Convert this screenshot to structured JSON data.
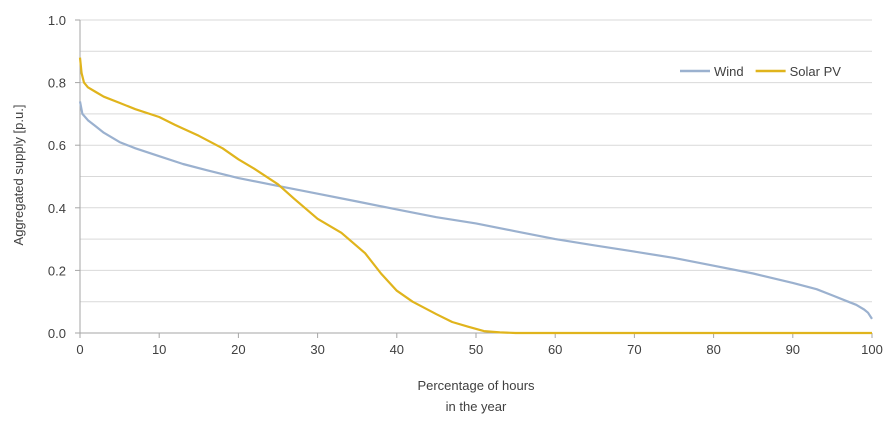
{
  "chart_data": {
    "type": "line",
    "title": "",
    "xlabel_lines": [
      "Percentage of hours",
      "in the year"
    ],
    "ylabel": "Aggregated supply [p.u.]",
    "xlim": [
      0,
      100
    ],
    "ylim": [
      0,
      1.0
    ],
    "x_ticks": [
      "0",
      "10",
      "20",
      "30",
      "40",
      "50",
      "60",
      "70",
      "80",
      "90",
      "100"
    ],
    "y_ticks": [
      "0.0",
      "0.2",
      "0.4",
      "0.6",
      "0.8",
      "1.0"
    ],
    "grid": "horizontal",
    "legend_position": "top-right",
    "series": [
      {
        "name": "Wind",
        "color": "#9bb1cf",
        "points": [
          [
            0,
            0.74
          ],
          [
            0.3,
            0.7
          ],
          [
            1,
            0.68
          ],
          [
            2,
            0.66
          ],
          [
            3,
            0.64
          ],
          [
            5,
            0.61
          ],
          [
            7,
            0.59
          ],
          [
            10,
            0.565
          ],
          [
            13,
            0.54
          ],
          [
            16,
            0.52
          ],
          [
            20,
            0.495
          ],
          [
            25,
            0.47
          ],
          [
            30,
            0.445
          ],
          [
            35,
            0.42
          ],
          [
            40,
            0.395
          ],
          [
            45,
            0.37
          ],
          [
            50,
            0.35
          ],
          [
            55,
            0.325
          ],
          [
            60,
            0.3
          ],
          [
            65,
            0.28
          ],
          [
            70,
            0.26
          ],
          [
            75,
            0.24
          ],
          [
            80,
            0.215
          ],
          [
            85,
            0.19
          ],
          [
            90,
            0.16
          ],
          [
            93,
            0.14
          ],
          [
            95,
            0.12
          ],
          [
            97,
            0.1
          ],
          [
            98,
            0.09
          ],
          [
            99,
            0.075
          ],
          [
            99.5,
            0.065
          ],
          [
            100,
            0.045
          ]
        ]
      },
      {
        "name": "Solar PV",
        "color": "#e0b41c",
        "points": [
          [
            0,
            0.88
          ],
          [
            0.2,
            0.83
          ],
          [
            0.5,
            0.8
          ],
          [
            1,
            0.785
          ],
          [
            2,
            0.77
          ],
          [
            3,
            0.755
          ],
          [
            5,
            0.735
          ],
          [
            7,
            0.715
          ],
          [
            10,
            0.69
          ],
          [
            12,
            0.665
          ],
          [
            15,
            0.63
          ],
          [
            18,
            0.59
          ],
          [
            20,
            0.555
          ],
          [
            22,
            0.525
          ],
          [
            25,
            0.475
          ],
          [
            27,
            0.43
          ],
          [
            30,
            0.365
          ],
          [
            33,
            0.32
          ],
          [
            36,
            0.255
          ],
          [
            38,
            0.19
          ],
          [
            40,
            0.135
          ],
          [
            42,
            0.1
          ],
          [
            45,
            0.06
          ],
          [
            47,
            0.035
          ],
          [
            49,
            0.02
          ],
          [
            51,
            0.006
          ],
          [
            53,
            0.002
          ],
          [
            55,
            0.0
          ],
          [
            60,
            0.0
          ],
          [
            70,
            0.0
          ],
          [
            80,
            0.0
          ],
          [
            90,
            0.0
          ],
          [
            100,
            0.0
          ]
        ]
      }
    ]
  }
}
